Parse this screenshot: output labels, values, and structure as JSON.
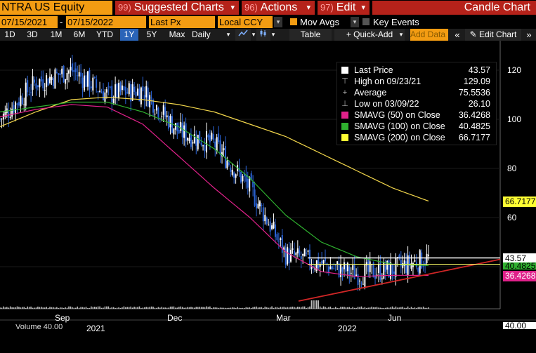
{
  "toolbar": {
    "ticker": "NTRA US Equity",
    "menus": [
      {
        "num": "99)",
        "label": "Suggested Charts"
      },
      {
        "num": "96)",
        "label": "Actions"
      },
      {
        "num": "97)",
        "label": "Edit"
      }
    ],
    "chart_title": "Candle Chart"
  },
  "controls": {
    "start_date": "07/15/2021",
    "date_separator": "-",
    "end_date": "07/15/2022",
    "price_field": "Last Px",
    "currency": "Local CCY",
    "mov_avgs_label": "Mov Avgs",
    "key_events_label": "Key Events"
  },
  "periods": {
    "buttons": [
      "1D",
      "3D",
      "1M",
      "6M",
      "YTD",
      "1Y",
      "5Y",
      "Max"
    ],
    "selected": "1Y",
    "interval": "Daily",
    "table_label": "Table",
    "quick_add_label": "+ Quick-Add",
    "add_data_label": "Add Data",
    "edit_chart_label": "Edit Chart"
  },
  "legend": {
    "rows": [
      {
        "name": "Last Price",
        "value": "43.57",
        "swatch": "#ffffff",
        "sym": ""
      },
      {
        "name": "High on 09/23/21",
        "value": "129.09",
        "swatch": "",
        "sym": "⊤"
      },
      {
        "name": "Average",
        "value": "75.5536",
        "swatch": "",
        "sym": "+"
      },
      {
        "name": "Low on 03/09/22",
        "value": "26.10",
        "swatch": "",
        "sym": "⊥"
      },
      {
        "name": "SMAVG (50)  on Close",
        "value": "36.4268",
        "swatch": "#e0218a",
        "sym": ""
      },
      {
        "name": "SMAVG (100)  on Close",
        "value": "40.4825",
        "swatch": "#2fb12f",
        "sym": ""
      },
      {
        "name": "SMAVG (200)  on Close",
        "value": "66.7177",
        "swatch": "#ffff33",
        "sym": ""
      }
    ]
  },
  "axis": {
    "y_ticks": [
      "120",
      "100",
      "80",
      "60"
    ],
    "x_ticks": [
      "Sep",
      "Dec",
      "Mar",
      "Jun"
    ],
    "x_years": [
      "2021",
      "2022"
    ],
    "badges": [
      {
        "text": "66.7177",
        "bg": "#ffff33",
        "fg": "#000000"
      },
      {
        "text": "43.57",
        "bg": "#ffffff",
        "fg": "#000000"
      },
      {
        "text": "40.4825",
        "bg": "#2fb12f",
        "fg": "#000000"
      },
      {
        "text": "36.4268",
        "bg": "#e0218a",
        "fg": "#ffffff"
      },
      {
        "text": "40.00",
        "bg": "#ffffff",
        "fg": "#000000"
      }
    ],
    "volume_label": "Volume  40.00"
  },
  "chart_data": {
    "type": "candlestick",
    "title": "",
    "ylim": [
      20,
      135
    ],
    "colors": {
      "up": "#ffffff",
      "down": "#2a64d8",
      "sma50": "#e0218a",
      "sma100": "#2fb12f",
      "sma200": "#f2d64b",
      "trend": "#d02626",
      "resistance": "#ffffff"
    },
    "x_dates": [
      "2021-07",
      "2021-08",
      "2021-09",
      "2021-10",
      "2021-11",
      "2021-12",
      "2022-01",
      "2022-02",
      "2022-03",
      "2022-04",
      "2022-05",
      "2022-06",
      "2022-07"
    ],
    "close_approx": [
      100,
      115,
      120,
      110,
      112,
      95,
      90,
      72,
      45,
      41,
      37,
      39,
      43.57
    ],
    "sma50_approx": [
      101,
      104,
      106,
      105,
      98,
      85,
      72,
      60,
      46,
      38,
      36,
      36.5,
      36.43
    ],
    "sma100_approx": [
      103,
      105,
      107,
      107,
      103,
      97,
      88,
      76,
      61,
      50,
      44,
      41,
      40.48
    ],
    "sma200_approx": [
      97,
      103,
      108,
      109,
      108,
      106,
      103,
      98,
      93,
      86,
      79,
      72,
      66.72
    ],
    "high": 129.09,
    "low": 26.1,
    "last": 43.57
  }
}
